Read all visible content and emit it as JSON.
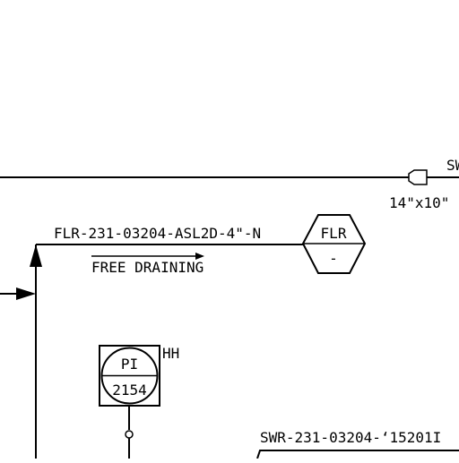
{
  "drawing": {
    "top_line_label": "SW",
    "reducer_label": "14\"x10\"",
    "flr_line_label": "FLR-231-03204-ASL2D-4\"-N",
    "free_draining_label": "FREE DRAINING",
    "flr_tag_top": "FLR",
    "flr_tag_bottom": "-",
    "pi_tag_top": "PI",
    "pi_tag_bottom": "2154",
    "pi_alarm": "HH",
    "swr_line_label": "SWR-231-03204-‘15201I"
  }
}
